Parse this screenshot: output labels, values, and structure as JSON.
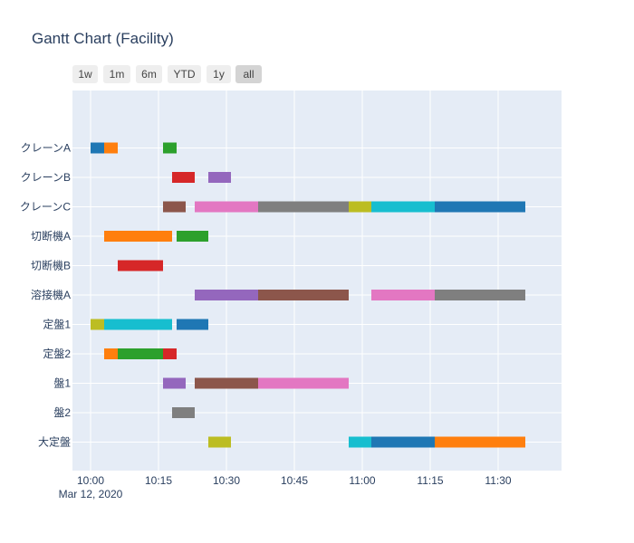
{
  "title": "Gantt Chart (Facility)",
  "range_buttons": [
    "1w",
    "1m",
    "6m",
    "YTD",
    "1y",
    "all"
  ],
  "active_range": "all",
  "colors": {
    "plot_bg": "#e5ecf6",
    "grid": "#ffffff",
    "text": "#2a3f5f"
  },
  "chart_data": {
    "type": "gantt",
    "title": "Gantt Chart (Facility)",
    "x_range": [
      "09:56",
      "11:44"
    ],
    "x_ticks": [
      {
        "t": "10:00",
        "label": "10:00"
      },
      {
        "t": "10:15",
        "label": "10:15"
      },
      {
        "t": "10:30",
        "label": "10:30"
      },
      {
        "t": "10:45",
        "label": "10:45"
      },
      {
        "t": "11:00",
        "label": "11:00"
      },
      {
        "t": "11:15",
        "label": "11:15"
      },
      {
        "t": "11:30",
        "label": "11:30"
      }
    ],
    "x_date_label": "Mar 12, 2020",
    "categories": [
      "クレーンA",
      "クレーンB",
      "クレーンC",
      "切断機A",
      "切断機B",
      "溶接機A",
      "定盤1",
      "定盤2",
      "盤1",
      "盤2",
      "大定盤"
    ],
    "tasks": [
      {
        "resource": "クレーンA",
        "start": "10:00",
        "end": "10:03",
        "color": "#1f77b4"
      },
      {
        "resource": "クレーンA",
        "start": "10:03",
        "end": "10:06",
        "color": "#ff7f0e"
      },
      {
        "resource": "クレーンA",
        "start": "10:16",
        "end": "10:19",
        "color": "#2ca02c"
      },
      {
        "resource": "クレーンB",
        "start": "10:18",
        "end": "10:23",
        "color": "#d62728"
      },
      {
        "resource": "クレーンB",
        "start": "10:26",
        "end": "10:31",
        "color": "#9467bd"
      },
      {
        "resource": "クレーンC",
        "start": "10:16",
        "end": "10:21",
        "color": "#8c564b"
      },
      {
        "resource": "クレーンC",
        "start": "10:23",
        "end": "10:37",
        "color": "#e377c2"
      },
      {
        "resource": "クレーンC",
        "start": "10:37",
        "end": "10:57",
        "color": "#7f7f7f"
      },
      {
        "resource": "クレーンC",
        "start": "10:57",
        "end": "11:02",
        "color": "#bcbd22"
      },
      {
        "resource": "クレーンC",
        "start": "11:02",
        "end": "11:16",
        "color": "#17becf"
      },
      {
        "resource": "クレーンC",
        "start": "11:16",
        "end": "11:36",
        "color": "#1f77b4"
      },
      {
        "resource": "切断機A",
        "start": "10:03",
        "end": "10:18",
        "color": "#ff7f0e"
      },
      {
        "resource": "切断機A",
        "start": "10:19",
        "end": "10:26",
        "color": "#2ca02c"
      },
      {
        "resource": "切断機B",
        "start": "10:06",
        "end": "10:16",
        "color": "#d62728"
      },
      {
        "resource": "溶接機A",
        "start": "10:23",
        "end": "10:37",
        "color": "#9467bd"
      },
      {
        "resource": "溶接機A",
        "start": "10:37",
        "end": "10:57",
        "color": "#8c564b"
      },
      {
        "resource": "溶接機A",
        "start": "11:02",
        "end": "11:16",
        "color": "#e377c2"
      },
      {
        "resource": "溶接機A",
        "start": "11:16",
        "end": "11:36",
        "color": "#7f7f7f"
      },
      {
        "resource": "定盤1",
        "start": "10:00",
        "end": "10:03",
        "color": "#bcbd22"
      },
      {
        "resource": "定盤1",
        "start": "10:03",
        "end": "10:18",
        "color": "#17becf"
      },
      {
        "resource": "定盤1",
        "start": "10:19",
        "end": "10:26",
        "color": "#1f77b4"
      },
      {
        "resource": "定盤2",
        "start": "10:03",
        "end": "10:06",
        "color": "#ff7f0e"
      },
      {
        "resource": "定盤2",
        "start": "10:06",
        "end": "10:16",
        "color": "#2ca02c"
      },
      {
        "resource": "定盤2",
        "start": "10:16",
        "end": "10:19",
        "color": "#d62728"
      },
      {
        "resource": "盤1",
        "start": "10:16",
        "end": "10:21",
        "color": "#9467bd"
      },
      {
        "resource": "盤1",
        "start": "10:23",
        "end": "10:37",
        "color": "#8c564b"
      },
      {
        "resource": "盤1",
        "start": "10:37",
        "end": "10:57",
        "color": "#e377c2"
      },
      {
        "resource": "盤2",
        "start": "10:18",
        "end": "10:23",
        "color": "#7f7f7f"
      },
      {
        "resource": "大定盤",
        "start": "10:26",
        "end": "10:31",
        "color": "#bcbd22"
      },
      {
        "resource": "大定盤",
        "start": "10:57",
        "end": "11:02",
        "color": "#17becf"
      },
      {
        "resource": "大定盤",
        "start": "11:02",
        "end": "11:16",
        "color": "#1f77b4"
      },
      {
        "resource": "大定盤",
        "start": "11:16",
        "end": "11:36",
        "color": "#ff7f0e"
      }
    ]
  }
}
